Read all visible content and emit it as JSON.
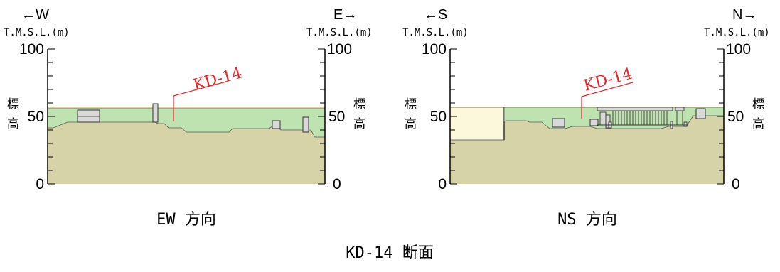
{
  "figure_title": "KD-14 断面",
  "panels": {
    "ew": {
      "caption": "EW 方向",
      "left_direction": "←W",
      "right_direction": "E→",
      "left_unit": "T.M.S.L.(m)",
      "right_unit": "T.M.S.L.(m)",
      "left_ticks": [
        "100",
        "50",
        "0"
      ],
      "right_ticks": [
        "100",
        "50",
        "0"
      ],
      "left_axis_label": [
        "標",
        "高"
      ],
      "right_axis_label": [
        "標",
        "高"
      ],
      "marker_label": "KD-14"
    },
    "ns": {
      "caption": "NS 方向",
      "left_direction": "←S",
      "right_direction": "N→",
      "left_unit": "T.M.S.L.(m)",
      "right_unit": "T.M.S.L.(m)",
      "left_ticks": [
        "100",
        "50",
        "0"
      ],
      "right_ticks": [
        "100",
        "50",
        "0"
      ],
      "left_axis_label": [
        "標",
        "高"
      ],
      "right_axis_label": [
        "標",
        "高"
      ],
      "marker_label": "KD-14"
    }
  },
  "colors": {
    "soil": "#d6d3a8",
    "fill_layer": "#bfe3b0",
    "reclaimed_block": "#fbf8dc",
    "structure": "#d9d9d9",
    "marker": "#e8262a",
    "axis": "#000000"
  }
}
